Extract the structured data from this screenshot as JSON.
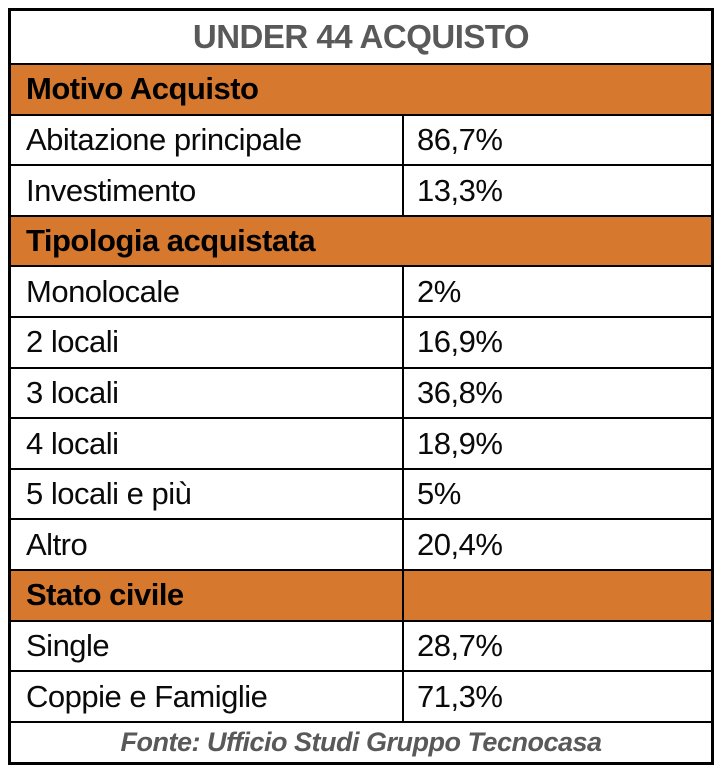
{
  "title": "UNDER 44 ACQUISTO",
  "source_note": "Fonte: Ufficio Studi Gruppo Tecnocasa",
  "colors": {
    "section_header_bg": "#D6792E",
    "title_text": "#595959",
    "footer_text": "#595959",
    "border": "#000000",
    "data_text": "#000000"
  },
  "sections": [
    {
      "header": "Motivo Acquisto",
      "rows": [
        {
          "label": "Abitazione principale",
          "value": "86,7%"
        },
        {
          "label": "Investimento",
          "value": "13,3%"
        }
      ]
    },
    {
      "header": "Tipologia acquistata",
      "rows": [
        {
          "label": "Monolocale",
          "value": "2%"
        },
        {
          "label": "2 locali",
          "value": "16,9%"
        },
        {
          "label": "3 locali",
          "value": "36,8%"
        },
        {
          "label": "4 locali",
          "value": "18,9%"
        },
        {
          "label": "5 locali e più",
          "value": "5%"
        },
        {
          "label": "Altro",
          "value": "20,4%"
        }
      ]
    },
    {
      "header": "Stato civile",
      "rows": [
        {
          "label": "Single",
          "value": "28,7%"
        },
        {
          "label": "Coppie e Famiglie",
          "value": "71,3%"
        }
      ]
    }
  ],
  "chart_data": {
    "type": "table",
    "title": "UNDER 44 ACQUISTO",
    "sections": [
      {
        "header": "Motivo Acquisto",
        "categories": [
          "Abitazione principale",
          "Investimento"
        ],
        "values_pct": [
          86.7,
          13.3
        ]
      },
      {
        "header": "Tipologia acquistata",
        "categories": [
          "Monolocale",
          "2 locali",
          "3 locali",
          "4 locali",
          "5 locali e più",
          "Altro"
        ],
        "values_pct": [
          2,
          16.9,
          36.8,
          18.9,
          5,
          20.4
        ]
      },
      {
        "header": "Stato civile",
        "categories": [
          "Single",
          "Coppie e Famiglie"
        ],
        "values_pct": [
          28.7,
          71.3
        ]
      }
    ],
    "source": "Fonte: Ufficio Studi Gruppo Tecnocasa"
  }
}
